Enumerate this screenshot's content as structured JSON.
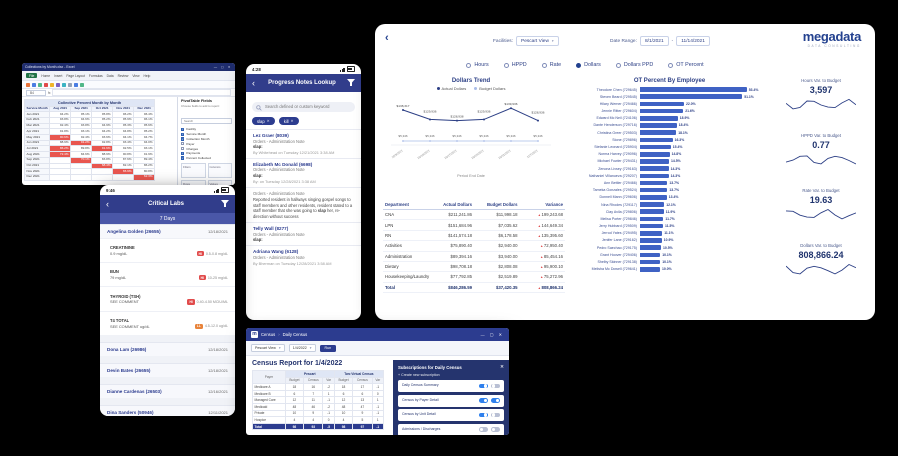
{
  "colors": {
    "navy": "#2c3c8f",
    "navy_dark": "#1f2d6e",
    "bar_blue": "#3f62c4",
    "light_blue": "#a9bce8",
    "red": "#e14b4b",
    "orange": "#e8833a",
    "toggle_on": "#2f80ed",
    "excel_green": "#217346"
  },
  "icons": {
    "back": "‹",
    "close": "✕",
    "caret": "▾",
    "window_controls": "— ▢ ✕",
    "variance_up": "▲"
  },
  "spreadsheet": {
    "titlebar": "Collections by Month.xlsx - Excel",
    "window_controls": "— ▢ ✕",
    "ribbon_tabs": [
      "File",
      "Home",
      "Insert",
      "Page Layout",
      "Formulas",
      "Data",
      "Review",
      "View",
      "Help"
    ],
    "cell_ref": "B4",
    "fx_label": "fx",
    "grid": {
      "title": "Collective Percent Month by Month",
      "columns": [
        "Service Month",
        "Aug 2021",
        "Sep 2021",
        "Oct 2021",
        "Nov 2021",
        "Dec 2021"
      ],
      "rows": [
        {
          "label": "Jan 2021",
          "values": [
            "94.2%",
            "95.1%",
            "95.8%",
            "96.2%",
            "96.4%"
          ],
          "red": []
        },
        {
          "label": "Feb 2021",
          "values": [
            "93.8%",
            "94.6%",
            "95.2%",
            "95.9%",
            "96.1%"
          ],
          "red": []
        },
        {
          "label": "Mar 2021",
          "values": [
            "92.4%",
            "93.8%",
            "94.9%",
            "95.3%",
            "95.6%"
          ],
          "red": []
        },
        {
          "label": "Apr 2021",
          "values": [
            "91.8%",
            "93.1%",
            "94.2%",
            "94.8%",
            "95.2%"
          ],
          "red": []
        },
        {
          "label": "May 2021",
          "values": [
            "90.6%",
            "92.4%",
            "93.6%",
            "94.1%",
            "94.7%"
          ],
          "red": [
            0
          ]
        },
        {
          "label": "Jun 2021",
          "values": [
            "88.9%",
            "91.2%",
            "92.8%",
            "93.4%",
            "94.0%"
          ],
          "red": [
            1
          ]
        },
        {
          "label": "Jul 2021",
          "values": [
            "86.2%",
            "89.8%",
            "91.6%",
            "92.5%",
            "93.1%"
          ],
          "red": [
            0,
            2
          ]
        },
        {
          "label": "Aug 2021",
          "values": [
            "72.4%",
            "84.6%",
            "88.9%",
            "90.8%",
            "91.9%"
          ],
          "red": [
            0
          ]
        },
        {
          "label": "Sep 2021",
          "values": [
            "",
            "70.1%",
            "83.8%",
            "87.6%",
            "89.4%"
          ],
          "red": [
            1
          ]
        },
        {
          "label": "Oct 2021",
          "values": [
            "",
            "",
            "68.4%",
            "82.1%",
            "86.2%"
          ],
          "red": [
            2
          ]
        },
        {
          "label": "Nov 2021",
          "values": [
            "",
            "",
            "",
            "65.9%",
            "80.8%"
          ],
          "red": [
            3
          ]
        },
        {
          "label": "Dec 2021",
          "values": [
            "",
            "",
            "",
            "",
            "62.3%"
          ],
          "red": [
            4
          ]
        }
      ]
    },
    "fields_panel": {
      "title": "PivotTable Fields",
      "subtitle": "Choose fields to add to report:",
      "search_placeholder": "Search",
      "items": [
        {
          "label": "Facility",
          "checked": true
        },
        {
          "label": "Service Month",
          "checked": true
        },
        {
          "label": "Collection Month",
          "checked": true
        },
        {
          "label": "Payer",
          "checked": false
        },
        {
          "label": "Charges",
          "checked": false
        },
        {
          "label": "Payments",
          "checked": true
        },
        {
          "label": "Percent Collected",
          "checked": true
        }
      ],
      "areas": [
        "Filters",
        "Columns",
        "Rows",
        "Values"
      ]
    }
  },
  "notes_phone": {
    "status_time": "4:28",
    "title": "Progress Notes Lookup",
    "search_placeholder": "Search defined or custom keyword",
    "chips": [
      "slap",
      "kill"
    ],
    "entries": [
      {
        "name": "Lez Graer (8039)",
        "type": "Orders - Administration Note",
        "keyword": "slap:",
        "byline": "By Whitehead on Tuesday 12/21/2021 3:38 AM"
      },
      {
        "name": "Elizabeth Mc Donald (6698)",
        "type": "Orders - Administration Note",
        "keyword": "slap:",
        "byline": "By: on Tuesday 12/28/2021 3:38 AM"
      },
      {
        "type": "Orders - Administration Note",
        "body_pre": "Reported resident in hallways singing gospel songs to staff members and other residents, resident stated to a staff member that she was going to ",
        "body_bold": "slap",
        "body_post": " her, re-direction without success"
      },
      {
        "name": "Telly Wall (8277)",
        "type": "Orders - Administration Note",
        "keyword": "slap:"
      },
      {
        "name": "Adriana Wang (6128)",
        "type": "Orders - Administration Note",
        "byline": "By Bherman on Tuesday 12/28/2021 3:58 AM"
      }
    ]
  },
  "labs_phone": {
    "status_time": "9:46",
    "title": "Critical Labs",
    "subtitle": "7 Days",
    "groups": [
      {
        "patient": "Angelina Golden (26655)",
        "date": "12/18/2021",
        "labs": [
          {
            "name": "CREATININE",
            "value": "0.9 mg/dL",
            "flag": "HI",
            "range": "0.5-0.8 mg/dL"
          },
          {
            "name": "BUN",
            "value": "79 mg/dL",
            "flag": "HI",
            "range": "10-25 mg/dL"
          },
          {
            "name": "THYROID (TSH)",
            "value": "SEE COMMENT",
            "flag": "HI",
            "range": "0.40-4.50 MCIU/ML"
          },
          {
            "name": "T4 TOTAL",
            "value": "SEE COMMENT ug/dL",
            "flag": "LL",
            "range": "4.5-12.0 ug/dL"
          }
        ]
      },
      {
        "patient": "Dona Lam (26986)",
        "date": "12/18/2021",
        "labs": []
      },
      {
        "patient": "Devin Bates (26655)",
        "date": "12/18/2021",
        "labs": []
      },
      {
        "patient": "Dianne Cardenas (26503)",
        "date": "12/16/2021",
        "labs": []
      },
      {
        "patient": "Dina Sanders (50946)",
        "date": "12/11/2021",
        "labs": []
      }
    ]
  },
  "dashboard": {
    "back_glyph": "‹",
    "facilities_label": "Facilities:",
    "facility_value": "Pescart View",
    "date_range_label": "Date Range:",
    "date_start": "8/1/2021",
    "date_end": "11/14/2021",
    "logo_text": "megadata",
    "logo_tagline": "data consulting",
    "metrics": [
      {
        "label": "Hours",
        "selected": false
      },
      {
        "label": "HPPD",
        "selected": false
      },
      {
        "label": "Rate",
        "selected": false
      },
      {
        "label": "Dollars",
        "selected": true
      },
      {
        "label": "Dollars PPD",
        "selected": false
      },
      {
        "label": "OT Percent",
        "selected": false
      }
    ],
    "cards": [
      {
        "title": "Hours Var. to Budget",
        "value": "3,597"
      },
      {
        "title": "HPPD Var. to Budget",
        "value": "0.77"
      },
      {
        "title": "Rate Var. to Budget",
        "value": "19.63"
      },
      {
        "title": "Dollars Var. to Budget",
        "value": "808,866.24"
      }
    ]
  },
  "chart_data": [
    {
      "type": "line",
      "title": "Dollars Trend",
      "x": [
        "10/3/2021",
        "10/10/2021",
        "10/17/2021",
        "10/24/2021",
        "10/31/2021",
        "11/7/2021"
      ],
      "series": [
        {
          "name": "Actual Dollars",
          "values": [
            138317,
            129936,
            128938,
            129936,
            139936,
            128936
          ],
          "labels": [
            "$138,317",
            "$129,936",
            "$128,938",
            "$129,936",
            "$139,936",
            "$128,936"
          ]
        },
        {
          "name": "Budget Dollars",
          "values": [
            5346,
            5346,
            5346,
            5346,
            5346,
            5346
          ],
          "labels": [
            "$5,346",
            "$5,346",
            "$5,346",
            "$5,346",
            "$5,346",
            "$5,346"
          ]
        }
      ],
      "xlabel": "Period End Date",
      "legend_position": "top",
      "grid": false
    },
    {
      "type": "bar",
      "orientation": "horizontal",
      "title": "OT Percent By Employee",
      "unit": "%",
      "xlim": [
        0,
        55
      ],
      "categories": [
        "Theodore Chen (729645)",
        "Steven Beard (729545)",
        "Hilary Werner (729466)",
        "Jennie Ritter (729604)",
        "Edward Mc Neil (724106)",
        "Dante Henderson (729716)",
        "Christina Greer (729503)",
        "Stone (729896)",
        "Stefanie Leonard (725904)",
        "Norma Harvey (729096)",
        "Michael Fowler (729431)",
        "Zenona Livsey (729163)",
        "Nathaniel Villanueva (729207)",
        "Ann Bettler (729466)",
        "Tameka Gonzales (729524)",
        "Donnell Mann (729606)",
        "Nina Rhodes (729117)",
        "Clay Avila (729806)",
        "Melisa Porter (729846)",
        "Jerry Hubbard (729509)",
        "Jerrod Yates (729495)",
        "Jenifer Lane (729162)",
        "Pedro Saechao (729175)",
        "Grant Hoover (729406)",
        "Shelby Skinner (729138)",
        "Melisha Mc Dowell (729641)"
      ],
      "values": [
        53.4,
        51.1,
        22.0,
        21.6,
        18.9,
        18.4,
        18.1,
        16.3,
        15.4,
        14.8,
        14.5,
        14.3,
        14.3,
        13.7,
        13.7,
        13.4,
        12.1,
        11.9,
        11.7,
        11.5,
        11.1,
        10.9,
        10.5,
        10.1,
        10.1,
        10.0
      ]
    },
    {
      "type": "table",
      "columns": [
        "Department",
        "Actual Dollars",
        "Budget Dollars",
        "Variance"
      ],
      "rows": [
        [
          "CNA",
          "$211,241.86",
          "$11,998.18",
          "199,243.68"
        ],
        [
          "LPN",
          "$151,684.96",
          "$7,035.62",
          "144,649.34"
        ],
        [
          "RN",
          "$141,574.18",
          "$6,178.58",
          "135,395.60"
        ],
        [
          "Activities",
          "$75,890.40",
          "$2,940.00",
          "72,950.40"
        ],
        [
          "Administration",
          "$89,394.16",
          "$3,940.00",
          "85,454.16"
        ],
        [
          "Dietary",
          "$98,708.18",
          "$2,808.08",
          "95,900.10"
        ],
        [
          "Housekeeping/Laundry",
          "$77,792.85",
          "$2,519.89",
          "75,272.96"
        ]
      ],
      "total_row": [
        "Total",
        "$846,286.59",
        "$37,420.35",
        "808,866.24"
      ]
    }
  ],
  "census": {
    "titlebar_app": "Census",
    "titlebar_page": "Daily Census",
    "titlebar_controls": "— ▢ ✕",
    "toolbar": {
      "facility": "Pescart View",
      "date": "1/4/2022",
      "run_label": "Run"
    },
    "heading": "Census Report for 1/4/2022",
    "table": {
      "first_col": "Payer",
      "groups": [
        "Pescart",
        "Two Virtual Census"
      ],
      "sub_headers": [
        "Budget",
        "Census",
        "Var",
        "Budget",
        "Census",
        "Var"
      ],
      "rows": [
        [
          "Medicare A",
          "18",
          "16",
          "-2",
          "18",
          "17",
          "-1"
        ],
        [
          "Medicare B",
          "6",
          "7",
          "1",
          "6",
          "6",
          "0"
        ],
        [
          "Managed Care",
          "12",
          "11",
          "-1",
          "12",
          "13",
          "1"
        ],
        [
          "Medicaid",
          "48",
          "46",
          "-2",
          "48",
          "47",
          "-1"
        ],
        [
          "Private",
          "10",
          "9",
          "-1",
          "10",
          "9",
          "-1"
        ],
        [
          "Hospice",
          "4",
          "4",
          "0",
          "4",
          "5",
          "1"
        ]
      ],
      "total_row": [
        "Total",
        "98",
        "93",
        "-5",
        "98",
        "97",
        "-1"
      ]
    },
    "subscriptions": {
      "title": "Subscriptions for Daily Census",
      "create_label": "+ Create new subscription",
      "items": [
        {
          "label": "Daily Census Summary",
          "toggles": [
            true,
            false
          ]
        },
        {
          "label": "Census by Payer Detail",
          "toggles": [
            true,
            true
          ]
        },
        {
          "label": "Census by Unit Detail",
          "toggles": [
            true,
            false
          ]
        },
        {
          "label": "Admissions / Discharges",
          "toggles": [
            false,
            false
          ]
        }
      ]
    }
  }
}
